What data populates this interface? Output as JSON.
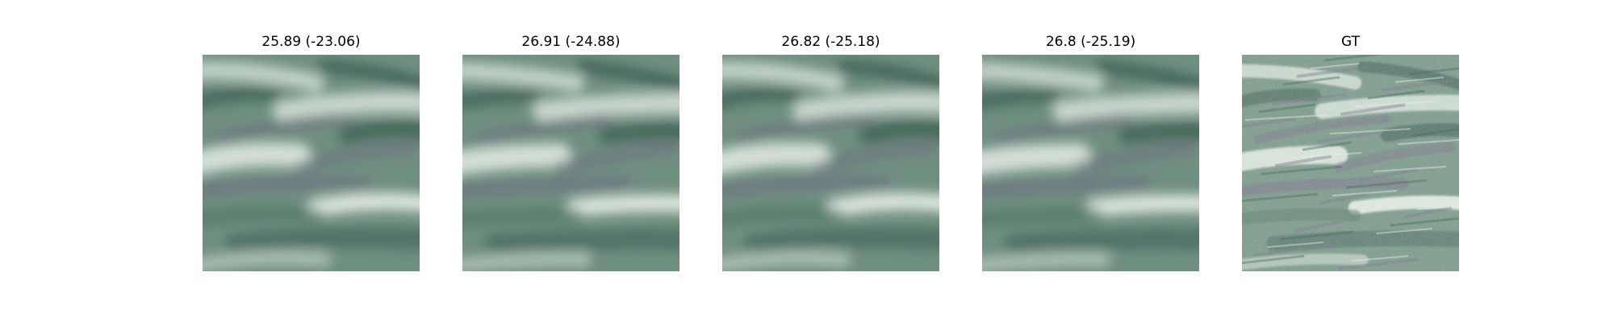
{
  "panels": [
    {
      "title": "25.89 (-23.06)",
      "sharpness": "blurred"
    },
    {
      "title": "26.91 (-24.88)",
      "sharpness": "blurred"
    },
    {
      "title": "26.82 (-25.18)",
      "sharpness": "blurred"
    },
    {
      "title": "26.8 (-25.19)",
      "sharpness": "blurred"
    },
    {
      "title": "GT",
      "sharpness": "sharp"
    }
  ],
  "palette": {
    "base": "#6f8f80",
    "dark": "#2f5444",
    "light": "#e4ece4",
    "mid": "#4f7564",
    "purple": "#6e6a80"
  }
}
